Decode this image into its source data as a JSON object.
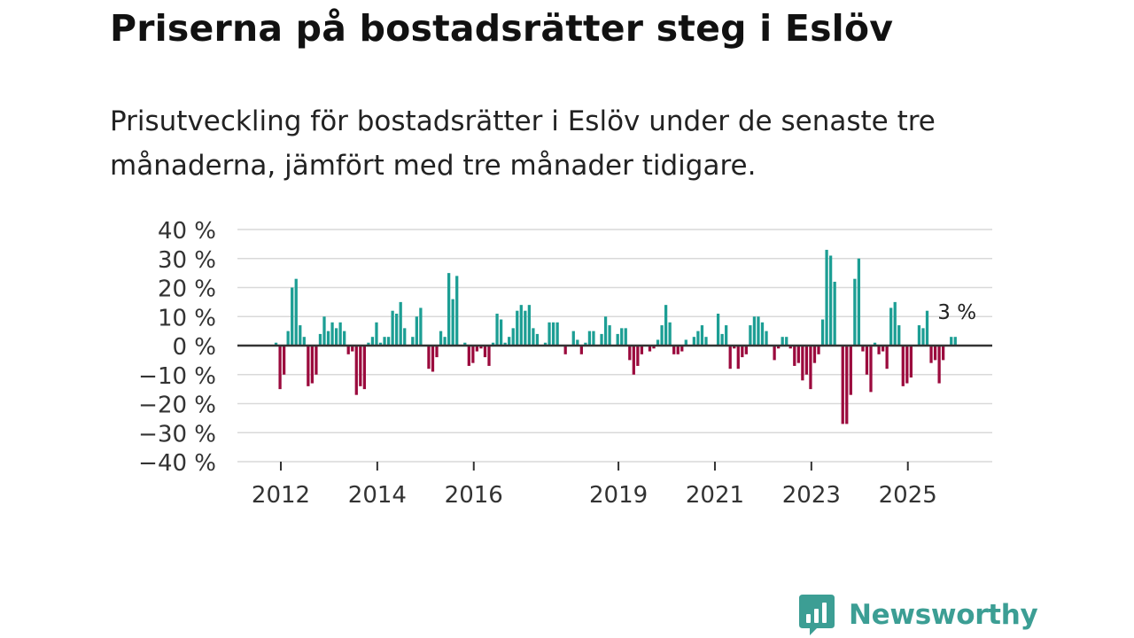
{
  "title": "Priserna på bostadsrätter steg i Eslöv",
  "subtitle": "Prisutveckling för bostadsrätter i Eslöv under de senaste tre månaderna, jämfört med tre månader tidigare.",
  "brand": {
    "name": "Newsworthy",
    "icon": "newsworthy-logo-icon",
    "color": "#3c9e94"
  },
  "colors": {
    "positive": "#1c9e94",
    "negative": "#9b0a3d",
    "zero_line": "#333333",
    "grid": "#d9d9d9"
  },
  "chart_data": {
    "type": "bar",
    "ylim": [
      -40,
      40
    ],
    "yticks": [
      40,
      30,
      20,
      10,
      0,
      -10,
      -20,
      -30,
      -40
    ],
    "ytick_labels": [
      "40 %",
      "30 %",
      "20 %",
      "10 %",
      "0 %",
      "−10 %",
      "−20 %",
      "−30 %",
      "−40 %"
    ],
    "xlim": [
      2011.1,
      2026.75
    ],
    "xticks": [
      2012,
      2014,
      2016,
      2019,
      2021,
      2023,
      2025
    ],
    "xtick_labels": [
      "2012",
      "2014",
      "2016",
      "2019",
      "2021",
      "2023",
      "2025"
    ],
    "grid": true,
    "x_start": 2011.9,
    "x_step": 0.0833333,
    "values": [
      1,
      -15,
      -10,
      5,
      20,
      23,
      7,
      3,
      -14,
      -13,
      -10,
      4,
      10,
      5,
      8,
      6,
      8,
      5,
      -3,
      -2,
      -17,
      -14,
      -15,
      1,
      3,
      8,
      1,
      3,
      3,
      12,
      11,
      15,
      6,
      0,
      3,
      10,
      13,
      0,
      -8,
      -9,
      -4,
      5,
      3,
      25,
      16,
      24,
      0,
      1,
      -7,
      -6,
      -2,
      -1,
      -4,
      -7,
      1,
      11,
      9,
      1,
      3,
      6,
      12,
      14,
      12,
      14,
      6,
      4,
      0,
      1,
      8,
      8,
      8,
      0,
      -3,
      0,
      5,
      2,
      -3,
      1,
      5,
      5,
      0,
      4,
      10,
      7,
      0,
      4,
      6,
      6,
      -5,
      -10,
      -7,
      -3,
      0,
      -2,
      -1,
      2,
      7,
      14,
      8,
      -3,
      -3,
      -2,
      2,
      0,
      3,
      5,
      7,
      3,
      0,
      0,
      11,
      4,
      7,
      -8,
      -1,
      -8,
      -4,
      -3,
      7,
      10,
      10,
      8,
      5,
      0,
      -5,
      -1,
      3,
      3,
      -1,
      -7,
      -6,
      -12,
      -10,
      -15,
      -6,
      -3,
      9,
      33,
      31,
      22,
      0,
      -27,
      -27,
      -17,
      23,
      30,
      -2,
      -10,
      -16,
      1,
      -3,
      -2,
      -8,
      13,
      15,
      7,
      -14,
      -13,
      -11,
      0,
      7,
      6,
      12,
      -6,
      -5,
      -13,
      -5,
      0,
      3,
      3
    ],
    "annotation": {
      "text": "3 %",
      "value": 3
    }
  }
}
